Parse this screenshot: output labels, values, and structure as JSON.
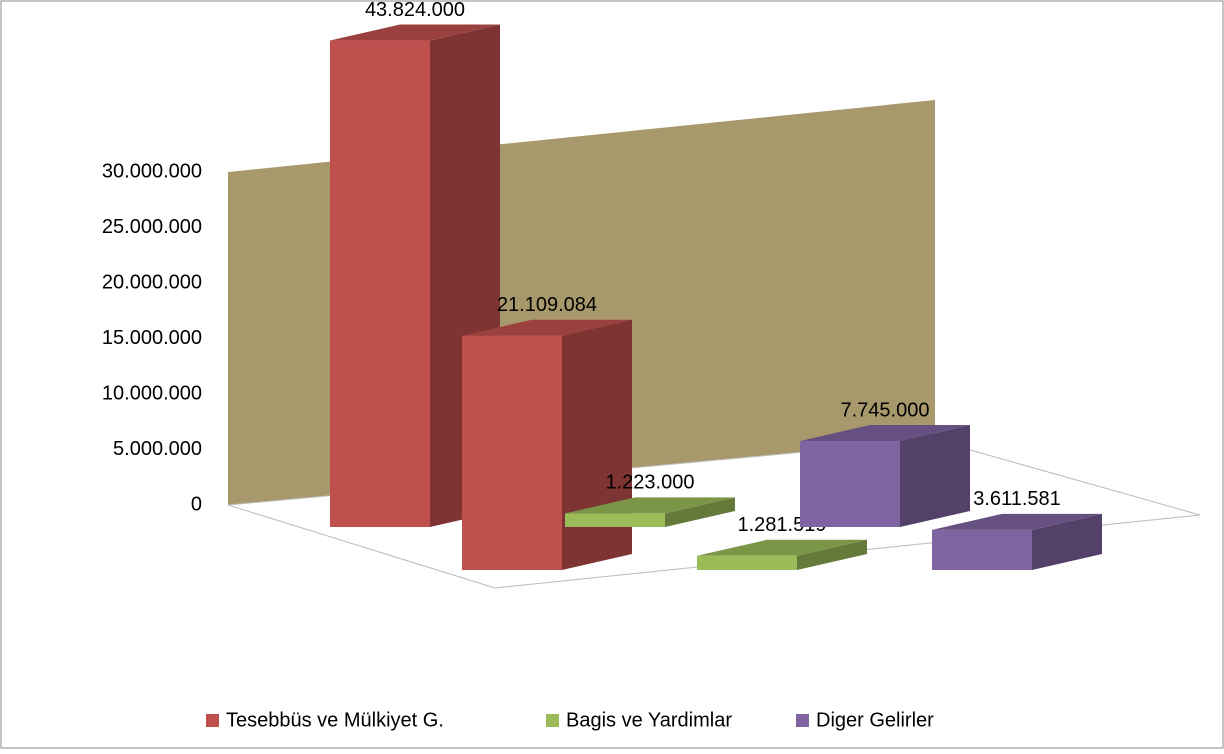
{
  "chart_data": {
    "type": "bar3d",
    "categories": [
      null,
      null
    ],
    "series": [
      {
        "name": "Tesebbüs ve Mülkiyet G.",
        "color": "#c0504d",
        "values": [
          43824000,
          21109084
        ],
        "value_labels": [
          "43.824.000",
          "21.109.084"
        ]
      },
      {
        "name": "Bagis ve Yardimlar",
        "color": "#9bbb59",
        "values": [
          1223000,
          1281519
        ],
        "value_labels": [
          "1.223.000",
          "1.281.519"
        ]
      },
      {
        "name": "Diger Gelirler",
        "color": "#8064a2",
        "values": [
          7745000,
          3611581
        ],
        "value_labels": [
          "7.745.000",
          "3.611.581"
        ]
      }
    ],
    "ylim": [
      0,
      30000000
    ],
    "yticks": [
      0,
      {
        "value": 5000000,
        "label": "5.000.000"
      },
      {
        "value": 10000000,
        "label": "10.000.000"
      },
      {
        "value": 15000000,
        "label": "15.000.000"
      },
      {
        "value": 20000000,
        "label": "20.000.000"
      },
      {
        "value": 25000000,
        "label": "25.000.000"
      },
      {
        "value": 30000000,
        "label": "30.000.000"
      }
    ],
    "legend": "bottom"
  }
}
